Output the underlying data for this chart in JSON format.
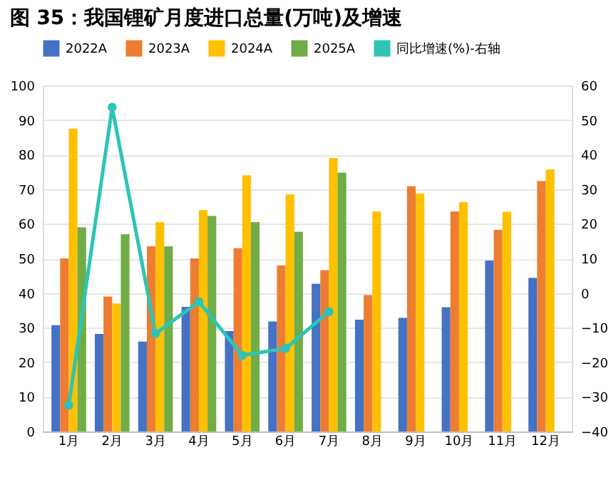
{
  "chart_data": {
    "type": "bar",
    "title": "图 35：我国锂矿月度进口总量(万吨)及增速",
    "categories": [
      "1月",
      "2月",
      "3月",
      "4月",
      "5月",
      "6月",
      "7月",
      "8月",
      "9月",
      "10月",
      "11月",
      "12月"
    ],
    "series": [
      {
        "name": "2022A",
        "color": "#4472c4",
        "values": [
          30.7,
          28.2,
          26,
          36,
          29,
          31.8,
          42.7,
          32.3,
          32.8,
          35.9,
          49.4,
          44.4
        ]
      },
      {
        "name": "2023A",
        "color": "#ed7d31",
        "values": [
          50,
          39,
          53.5,
          50,
          53,
          48,
          46.6,
          39.4,
          70.9,
          63.6,
          58.3,
          72.4
        ]
      },
      {
        "name": "2024A",
        "color": "#ffc000",
        "values": [
          87.5,
          37,
          60.5,
          64,
          74,
          68.5,
          79,
          63.6,
          68.8,
          66.3,
          63.5,
          75.7
        ]
      },
      {
        "name": "2025A",
        "color": "#70ad47",
        "values": [
          59,
          57,
          53.5,
          62.3,
          60.5,
          57.7,
          74.8,
          null,
          null,
          null,
          null,
          null
        ]
      },
      {
        "name": "同比增速(%)-右轴",
        "color": "#2ec4b6",
        "type": "line",
        "axis": "y2",
        "marker": "circle",
        "values": [
          -32.4,
          53.7,
          -11.7,
          -2.5,
          -18,
          -16,
          -5.4,
          null,
          null,
          null,
          null,
          null
        ]
      }
    ],
    "ylim": [
      0,
      100
    ],
    "yticks": [
      0,
      10,
      20,
      30,
      40,
      50,
      60,
      70,
      80,
      90,
      100
    ],
    "y2lim": [
      -40,
      60
    ],
    "y2ticks": [
      -40,
      -30,
      -20,
      -10,
      0,
      10,
      20,
      30,
      40,
      50,
      60
    ],
    "grid": "y",
    "legend": "top"
  }
}
